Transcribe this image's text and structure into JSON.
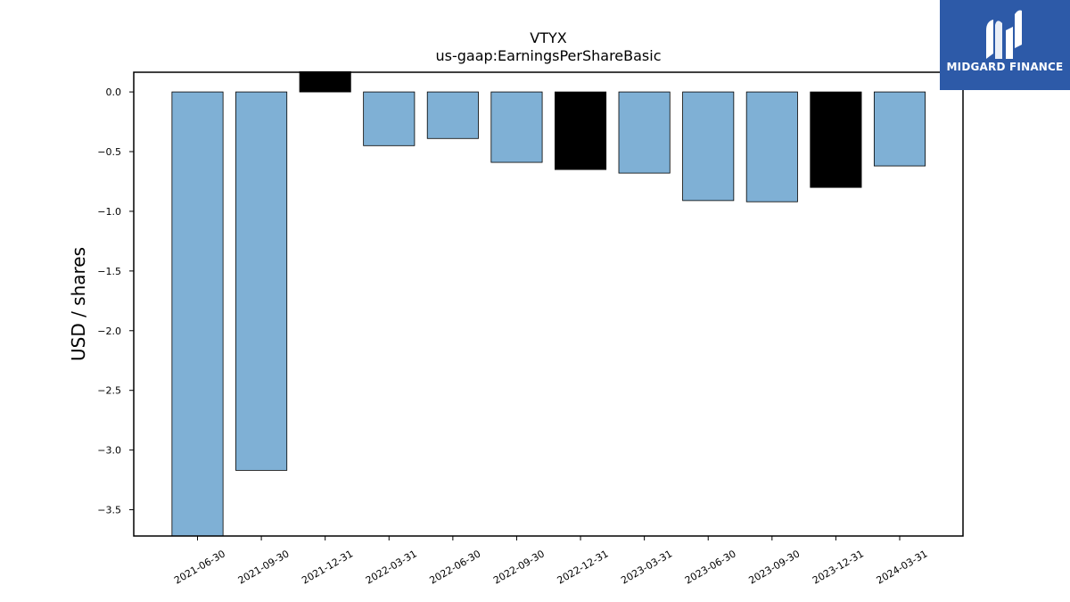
{
  "chart_data": {
    "type": "bar",
    "title": "VTYX",
    "subtitle": "us-gaap:EarningsPerShareBasic",
    "xlabel": "",
    "ylabel": "USD / shares",
    "categories": [
      "2021-06-30",
      "2021-09-30",
      "2021-12-31",
      "2022-03-31",
      "2022-06-30",
      "2022-09-30",
      "2022-12-31",
      "2023-03-31",
      "2023-06-30",
      "2023-09-30",
      "2023-12-31",
      "2024-03-31"
    ],
    "values": [
      -3.72,
      -3.17,
      0.17,
      -0.45,
      -0.39,
      -0.59,
      -0.65,
      -0.68,
      -0.91,
      -0.92,
      -0.8,
      -0.62
    ],
    "bar_colors": [
      "#7fb0d5",
      "#7fb0d5",
      "#000000",
      "#7fb0d5",
      "#7fb0d5",
      "#7fb0d5",
      "#000000",
      "#7fb0d5",
      "#7fb0d5",
      "#7fb0d5",
      "#000000",
      "#7fb0d5"
    ],
    "yticks": [
      "0.0",
      "−0.5",
      "−1.0",
      "−1.5",
      "−2.0",
      "−2.5",
      "−3.0",
      "−3.5"
    ],
    "ytick_values": [
      0.0,
      -0.5,
      -1.0,
      -1.5,
      -2.0,
      -2.5,
      -3.0,
      -3.5
    ],
    "ylim": [
      -3.72,
      0.165
    ],
    "grid": false,
    "legend": "none"
  },
  "logo": {
    "text": "MIDGARD FINANCE",
    "icon": "midgard-logo-icon",
    "color": "#2d5aa8"
  }
}
